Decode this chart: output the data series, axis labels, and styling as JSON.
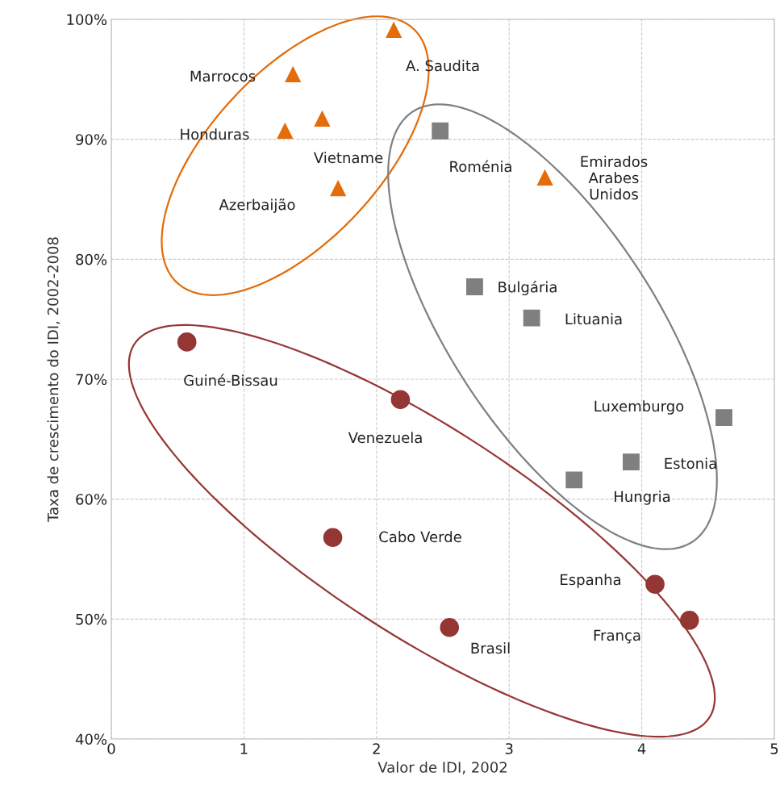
{
  "chart_data": {
    "type": "scatter",
    "xlabel": "Valor de IDI, 2002",
    "ylabel": "Taxa de crescimento do IDI, 2002-2008",
    "xlim": [
      0,
      5
    ],
    "xticks": [
      0,
      1,
      2,
      3,
      4,
      5
    ],
    "ylim": [
      40,
      100
    ],
    "yticks": [
      {
        "value": 40,
        "label": "40%"
      },
      {
        "value": 50,
        "label": "50%"
      },
      {
        "value": 60,
        "label": "60%"
      },
      {
        "value": 70,
        "label": "70%"
      },
      {
        "value": 80,
        "label": "80%"
      },
      {
        "value": 90,
        "label": "90%"
      },
      {
        "value": 100,
        "label": "100%"
      }
    ],
    "grid": true,
    "series": [
      {
        "color": "#e46c0a",
        "marker": "triangle",
        "x": [
          2.13,
          1.37,
          1.31,
          1.59,
          1.71,
          3.27
        ],
        "values": [
          99.1,
          95.4,
          90.7,
          91.7,
          85.9,
          86.8
        ]
      },
      {
        "color": "#7f7f7f",
        "marker": "square",
        "x": [
          2.48,
          2.74,
          3.17,
          4.62,
          3.92,
          3.49
        ],
        "values": [
          90.7,
          77.7,
          75.1,
          66.8,
          63.1,
          61.6
        ]
      },
      {
        "color": "#943634",
        "marker": "circle",
        "x": [
          0.57,
          2.18,
          1.67,
          2.55,
          4.1,
          4.36
        ],
        "values": [
          73.1,
          68.3,
          56.8,
          49.3,
          52.9,
          49.9
        ]
      }
    ],
    "annotations": [
      "A. Saudita",
      "Marrocos",
      "Honduras",
      "Vietname",
      "Azerbaijão",
      "Emirados\nArabes\nUnidos",
      "Roménia",
      "Bulgária",
      "Lituania",
      "Luxemburgo",
      "Estonia",
      "Hungria",
      "Guiné-Bissau",
      "Venezuela",
      "Cabo Verde",
      "Brasil",
      "Espanha",
      "França"
    ]
  }
}
